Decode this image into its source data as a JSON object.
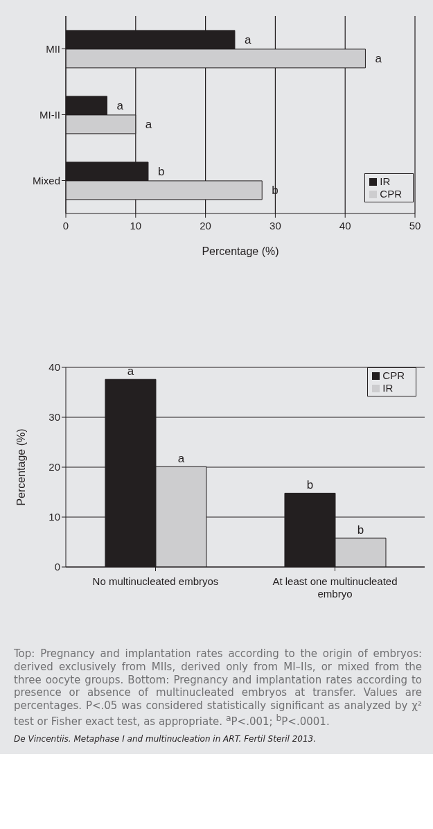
{
  "chart_data": [
    {
      "type": "bar",
      "orientation": "horizontal",
      "categories": [
        "MII",
        "MI-II",
        "Mixed"
      ],
      "xlabel": "Percentage (%)",
      "xlim": [
        0,
        50
      ],
      "xticks": [
        0,
        10,
        20,
        30,
        40,
        50
      ],
      "grid": "x",
      "legend": "bottom right",
      "series": [
        {
          "name": "IR",
          "color": "#231f20",
          "values": [
            24.2,
            5.9,
            11.8
          ],
          "value_labels": [
            "a",
            "a",
            "b"
          ]
        },
        {
          "name": "CPR",
          "color": "#cdcdcf",
          "values": [
            42.9,
            10.0,
            28.1
          ],
          "value_labels": [
            "a",
            "a",
            "b"
          ]
        }
      ]
    },
    {
      "type": "bar",
      "categories": [
        "No multinucleated embryos",
        "At least one multinucleated embryo"
      ],
      "ylabel": "Percentage (%)",
      "ylim": [
        0,
        40
      ],
      "yticks": [
        0,
        10,
        20,
        30,
        40
      ],
      "grid": "y",
      "legend": "top right",
      "series": [
        {
          "name": "CPR",
          "color": "#231f20",
          "values": [
            37.6,
            14.8
          ],
          "value_labels": [
            "a",
            "b"
          ]
        },
        {
          "name": "IR",
          "color": "#cdcdcf",
          "values": [
            20.1,
            5.8
          ],
          "value_labels": [
            "a",
            "b"
          ]
        }
      ],
      "annotations": [
        "Top: Pregnancy and implantation rates according to the origin of embryos: derived exclusively from MIIs, derived only from MI–IIs, or mixed from the three oocyte groups. Bottom: Pregnancy and implantation rates according to presence or absence of multinucleated embryos at transfer. Values are percentages. P<.05 was considered statistically significant as analyzed by χ² test or Fisher exact test, as appropriate. $^{a}$P<.001; $^{b}$P<.0001.",
        "De Vincentiis. Metaphase I and multinucleation in ART. Fertil Steril 2013."
      ]
    }
  ]
}
